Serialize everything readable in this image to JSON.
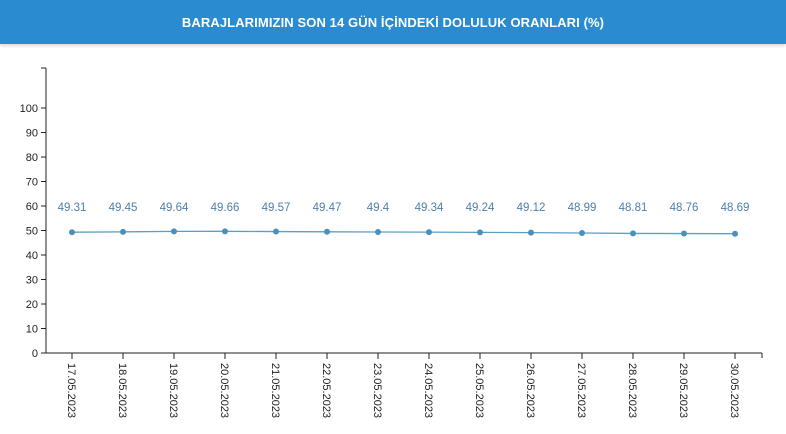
{
  "header": {
    "title": "BARAJLARIMIZIN SON 14 GÜN İÇİNDEKİ DOLULUK ORANLARI (%)"
  },
  "chart_data": {
    "type": "line",
    "title": "BARAJLARIMIZIN SON 14 GÜN İÇİNDEKİ DOLULUK ORANLARI (%)",
    "xlabel": "",
    "ylabel": "",
    "categories": [
      "17.05.2023",
      "18.05.2023",
      "19.05.2023",
      "20.05.2023",
      "21.05.2023",
      "22.05.2023",
      "23.05.2023",
      "24.05.2023",
      "25.05.2023",
      "26.05.2023",
      "27.05.2023",
      "28.05.2023",
      "29.05.2023",
      "30.05.2023"
    ],
    "series": [
      {
        "values": [
          49.31,
          49.45,
          49.64,
          49.66,
          49.57,
          49.47,
          49.4,
          49.34,
          49.24,
          49.12,
          48.99,
          48.81,
          48.76,
          48.69
        ],
        "labels": [
          "49.31",
          "49.45",
          "49.64",
          "49.66",
          "49.57",
          "49.47",
          "49.4",
          "49.34",
          "49.24",
          "49.12",
          "48.99",
          "48.81",
          "48.76",
          "48.69"
        ],
        "color": "#5b9fc6"
      }
    ],
    "yticks": [
      "0",
      "10",
      "20",
      "30",
      "40",
      "50",
      "60",
      "70",
      "80",
      "90",
      "100"
    ],
    "ylim": [
      0,
      100
    ],
    "grid": false,
    "legend": "none",
    "colors": {
      "line": "#5b9fc6",
      "marker": "#4a90bb",
      "label": "#4d7fae",
      "axis": "#222222",
      "header": "#2a8bd0"
    }
  }
}
